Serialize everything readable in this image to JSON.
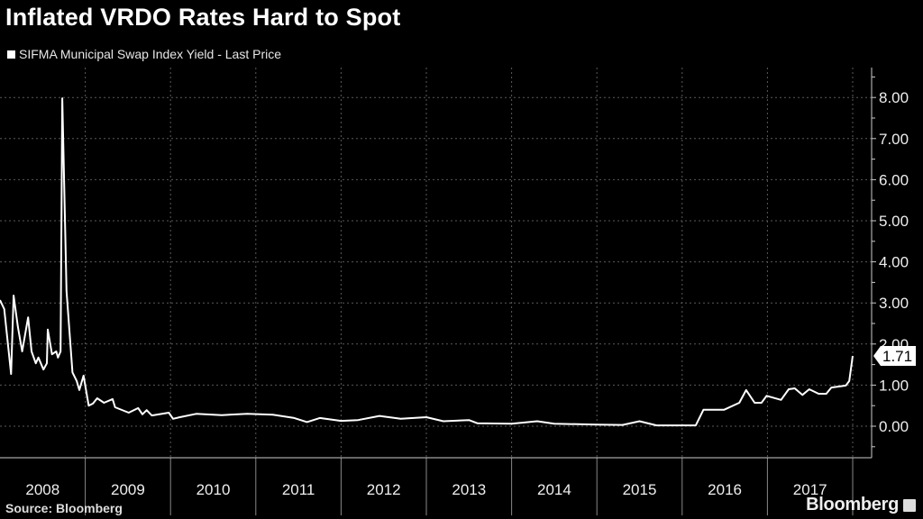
{
  "title": "Inflated VRDO Rates Hard to Spot",
  "source": "Source: Bloomberg",
  "brand": "Bloomberg",
  "colors": {
    "background": "#000000",
    "line": "#ffffff",
    "grid": "#555555"
  },
  "chart_data": {
    "type": "line",
    "title": "Inflated VRDO Rates Hard to Spot",
    "legend": [
      "SIFMA Municipal Swap Index Yield - Last Price"
    ],
    "legend_position": "top-left",
    "xlabel": "",
    "ylabel": "",
    "xlim": [
      2008,
      2018.2
    ],
    "ylim": [
      -0.77,
      8.73
    ],
    "y_ticks": [
      "0.00",
      "1.00",
      "2.00",
      "3.00",
      "4.00",
      "5.00",
      "6.00",
      "7.00",
      "8.00"
    ],
    "y_tick_values": [
      0,
      1,
      2,
      3,
      4,
      5,
      6,
      7,
      8
    ],
    "x_tick_labels": [
      "2008",
      "2009",
      "2010",
      "2011",
      "2012",
      "2013",
      "2014",
      "2015",
      "2016",
      "2017"
    ],
    "last_value_label": "1.71",
    "grid": true,
    "series": [
      {
        "name": "SIFMA Municipal Swap Index Yield - Last Price",
        "x": [
          2008.0,
          2008.05,
          2008.13,
          2008.16,
          2008.21,
          2008.26,
          2008.33,
          2008.37,
          2008.42,
          2008.45,
          2008.51,
          2008.55,
          2008.56,
          2008.61,
          2008.66,
          2008.68,
          2008.71,
          2008.73,
          2008.78,
          2008.85,
          2008.9,
          2008.93,
          2008.98,
          2009.04,
          2009.09,
          2009.14,
          2009.22,
          2009.32,
          2009.35,
          2009.51,
          2009.62,
          2009.67,
          2009.72,
          2009.78,
          2009.98,
          2010.03,
          2010.11,
          2010.3,
          2010.6,
          2010.9,
          2011.2,
          2011.45,
          2011.6,
          2011.75,
          2012.0,
          2012.2,
          2012.45,
          2012.7,
          2013.0,
          2013.2,
          2013.5,
          2013.6,
          2014.0,
          2014.3,
          2014.5,
          2015.0,
          2015.3,
          2015.5,
          2015.7,
          2016.0,
          2016.16,
          2016.25,
          2016.49,
          2016.67,
          2016.75,
          2016.85,
          2016.93,
          2016.99,
          2017.16,
          2017.25,
          2017.32,
          2017.41,
          2017.49,
          2017.6,
          2017.69,
          2017.75,
          2017.92,
          2017.96,
          2018.0
        ],
        "values": [
          3.07,
          2.85,
          1.27,
          3.18,
          2.41,
          1.82,
          2.65,
          1.82,
          1.53,
          1.67,
          1.38,
          1.53,
          2.35,
          1.75,
          1.82,
          1.67,
          1.82,
          7.98,
          3.29,
          1.31,
          1.1,
          0.88,
          1.23,
          0.5,
          0.55,
          0.68,
          0.57,
          0.66,
          0.46,
          0.33,
          0.44,
          0.29,
          0.39,
          0.26,
          0.33,
          0.18,
          0.22,
          0.3,
          0.27,
          0.3,
          0.28,
          0.2,
          0.1,
          0.2,
          0.13,
          0.15,
          0.25,
          0.18,
          0.22,
          0.12,
          0.15,
          0.07,
          0.06,
          0.12,
          0.06,
          0.04,
          0.03,
          0.12,
          0.02,
          0.02,
          0.02,
          0.4,
          0.4,
          0.57,
          0.88,
          0.57,
          0.57,
          0.74,
          0.64,
          0.9,
          0.92,
          0.76,
          0.9,
          0.79,
          0.79,
          0.94,
          0.99,
          1.1,
          1.71
        ]
      }
    ]
  }
}
